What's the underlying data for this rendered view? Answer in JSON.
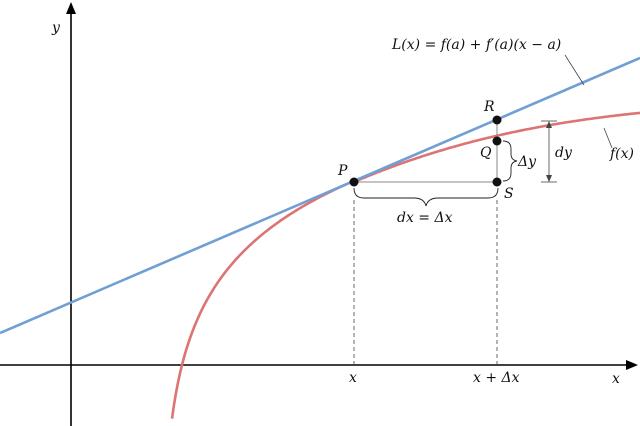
{
  "axes": {
    "x_label": "x",
    "y_label": "y"
  },
  "labels": {
    "tangent": "L(x) = f(a) + f′(a)(x − a)",
    "curve": "f(x)",
    "P": "P",
    "Q": "Q",
    "R": "R",
    "S": "S",
    "delta_y": "Δy",
    "dy": "dy",
    "dx": "dx = Δx",
    "x_tick": "x",
    "x_plus_dx_tick": "x + Δx"
  },
  "colors": {
    "tangent": "#6f9fd3",
    "curve": "#dc7474",
    "axis": "#000000"
  }
}
